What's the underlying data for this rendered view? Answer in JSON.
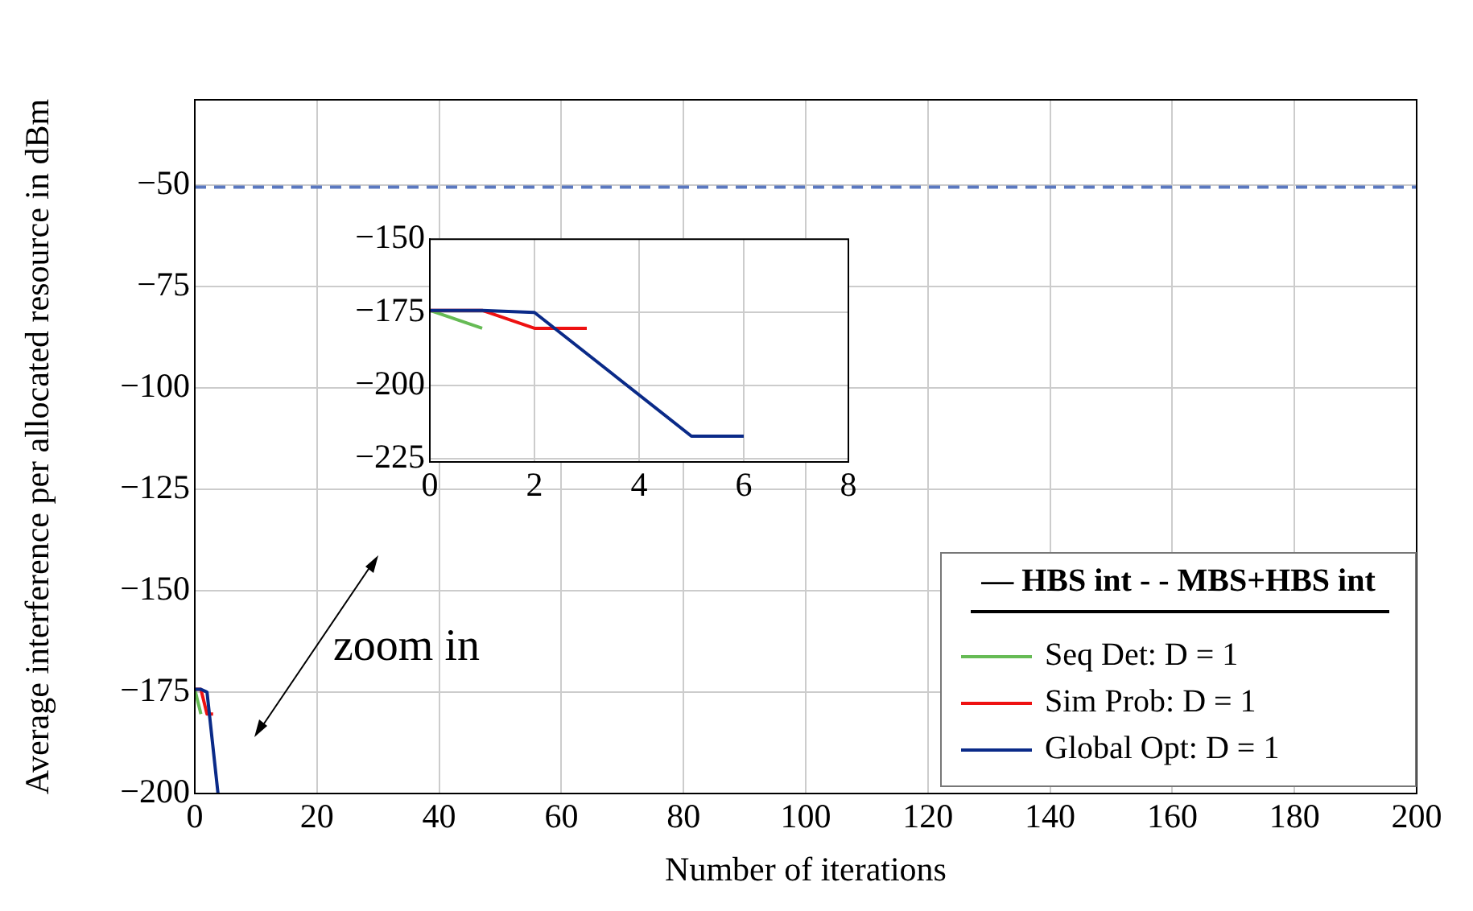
{
  "chart_data": [
    {
      "type": "line",
      "xlabel": "Number of iterations",
      "ylabel": "Average interference per allocated resource in dBm",
      "legend": "bottom right",
      "legend_title": "— HBS int - - MBS+HBS int",
      "marker": "none",
      "grid": true,
      "xlim": [
        0,
        200
      ],
      "xticks": [
        0,
        20,
        40,
        60,
        80,
        100,
        120,
        140,
        160,
        180,
        200
      ],
      "ylim": [
        -200,
        -29
      ],
      "yticks": [
        -200,
        -175,
        -150,
        -125,
        -100,
        -75,
        -50
      ],
      "annotations": [
        "zoom in"
      ],
      "series": [
        {
          "name": "Seq Det: D = 1",
          "color": "#66bb55",
          "x": [
            0,
            1
          ],
          "values": [
            -174.3,
            -180.4
          ]
        },
        {
          "name": "Sim Prob: D = 1",
          "color": "#ee1111",
          "x": [
            0,
            1,
            2,
            3
          ],
          "values": [
            -174.3,
            -174.3,
            -180.4,
            -180.4
          ]
        },
        {
          "name": "Global Opt: D = 1",
          "color": "#0a2a88",
          "x": [
            0,
            1,
            2,
            3.8
          ],
          "values": [
            -174.3,
            -174.3,
            -175,
            -200
          ]
        },
        {
          "color": "#5a78c0",
          "line_style": "dashed",
          "x": [
            0,
            200
          ],
          "values": [
            -50.5,
            -50.5
          ]
        }
      ]
    },
    {
      "type": "line",
      "marker": "none",
      "grid": true,
      "xlim": [
        0,
        8
      ],
      "xticks": [
        0,
        2,
        4,
        6,
        8
      ],
      "ylim": [
        -226,
        -150
      ],
      "yticks": [
        -225,
        -200,
        -175,
        -150
      ],
      "series": [
        {
          "color": "#66bb55",
          "x": [
            0,
            1
          ],
          "values": [
            -174.3,
            -180.4
          ]
        },
        {
          "color": "#ee1111",
          "x": [
            0,
            1,
            2,
            3
          ],
          "values": [
            -174.3,
            -174.3,
            -180.4,
            -180.4
          ]
        },
        {
          "color": "#0a2a88",
          "x": [
            0,
            1,
            2,
            5,
            6
          ],
          "values": [
            -174.3,
            -174.3,
            -175,
            -217.2,
            -217.2
          ]
        }
      ]
    }
  ]
}
